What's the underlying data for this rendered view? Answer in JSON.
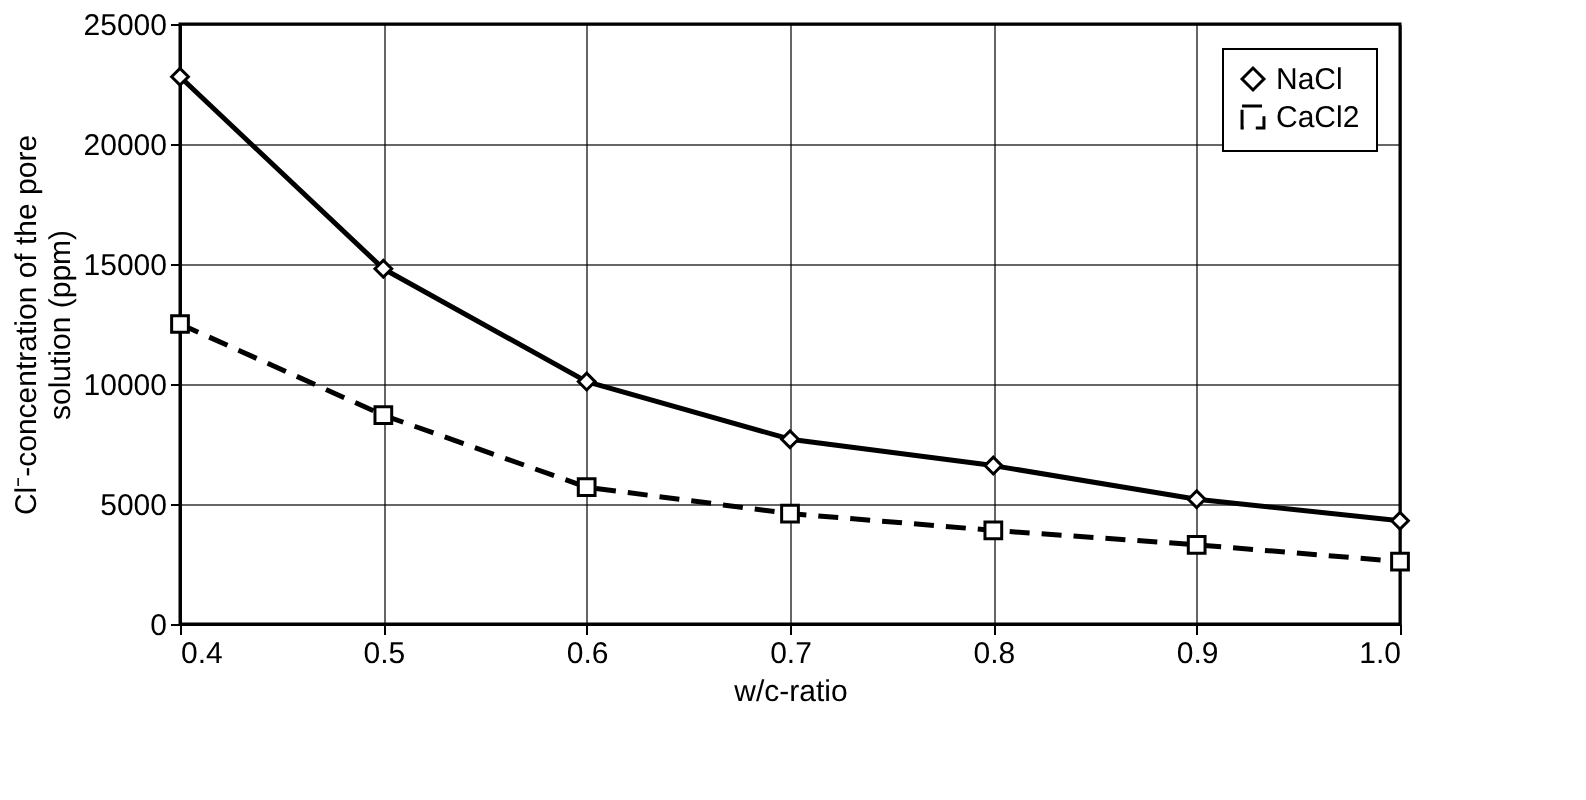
{
  "chart_data": {
    "type": "line",
    "xlabel": "w/c-ratio",
    "ylabel": "Cl⁻-concentration of the pore solution (ppm)",
    "x": [
      0.4,
      0.5,
      0.6,
      0.7,
      0.8,
      0.9,
      1.0
    ],
    "series": [
      {
        "name": "NaCl",
        "color": "#000000",
        "marker": "diamond",
        "line_style": "solid",
        "values": [
          22800,
          14800,
          10100,
          7700,
          6600,
          5200,
          4300
        ]
      },
      {
        "name": "CaCl2",
        "color": "#000000",
        "marker": "square",
        "line_style": "dashed",
        "values": [
          12500,
          8700,
          5700,
          4600,
          3900,
          3300,
          2600
        ]
      }
    ],
    "xlim": [
      0.4,
      1.0
    ],
    "xticks": [
      {
        "value": 0.4,
        "label": "0.4"
      },
      {
        "value": 0.5,
        "label": "0.5"
      },
      {
        "value": 0.6,
        "label": "0.6"
      },
      {
        "value": 0.7,
        "label": "0.7"
      },
      {
        "value": 0.8,
        "label": "0.8"
      },
      {
        "value": 0.9,
        "label": "0.9"
      },
      {
        "value": 1.0,
        "label": "1.0"
      }
    ],
    "ylim": [
      0,
      25000
    ],
    "yticks": [
      0,
      5000,
      10000,
      15000,
      20000,
      25000
    ],
    "grid": true,
    "legend": "top right"
  }
}
